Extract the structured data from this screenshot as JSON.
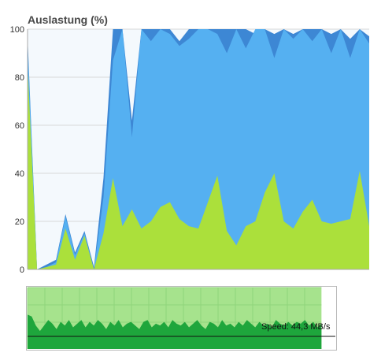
{
  "chart_data": {
    "type": "area",
    "title": "Auslastung (%)",
    "ylim": [
      0,
      100
    ],
    "yticks": [
      0,
      20,
      40,
      60,
      80,
      100
    ],
    "grid": true,
    "colors": {
      "background": "#f4f9fd",
      "series1": "#3d87d4",
      "series2": "#55b0f1",
      "series3": "#abe03b"
    },
    "samples": 37,
    "series": [
      {
        "values": [
          97,
          0,
          2,
          4,
          23,
          7,
          16,
          1,
          38,
          100,
          100,
          62,
          100,
          100,
          100,
          100,
          95,
          100,
          100,
          100,
          100,
          100,
          100,
          100,
          98,
          100,
          98,
          100,
          98,
          100,
          100,
          100,
          98,
          100,
          96,
          100,
          97
        ]
      },
      {
        "values": [
          94,
          0,
          1,
          3,
          22,
          6,
          15,
          0,
          30,
          87,
          100,
          55,
          100,
          95,
          100,
          98,
          93,
          96,
          100,
          100,
          98,
          90,
          100,
          92,
          100,
          100,
          88,
          100,
          96,
          100,
          95,
          100,
          90,
          100,
          88,
          100,
          94
        ]
      },
      {
        "values": [
          85,
          0,
          1,
          2,
          17,
          4,
          14,
          0,
          15,
          38,
          18,
          25,
          17,
          20,
          26,
          28,
          21,
          18,
          17,
          28,
          39,
          16,
          10,
          18,
          20,
          32,
          40,
          20,
          17,
          24,
          29,
          20,
          19,
          20,
          21,
          41,
          18
        ]
      }
    ]
  },
  "speed_panel": {
    "label": "Speed: 44,3 MB/s",
    "colors": {
      "background": "#a6e38d",
      "wave": "#1ea63c",
      "grid": "#8fd47a",
      "baseline": "#111111"
    },
    "fill_fraction": 0.95,
    "wave_values": [
      12,
      11,
      6,
      3,
      6,
      9,
      7,
      4,
      8,
      6,
      9,
      5,
      7,
      9,
      5,
      8,
      6,
      9,
      7,
      4,
      8,
      6,
      9,
      5,
      7,
      8,
      6,
      4,
      8,
      9,
      5,
      7,
      6,
      8,
      5,
      9,
      7,
      6,
      8,
      5,
      7,
      9,
      6,
      4,
      8,
      7,
      5,
      9,
      6,
      7,
      5,
      8,
      6,
      9,
      7,
      5,
      8,
      6,
      7,
      5,
      9,
      7,
      6,
      8,
      6,
      8,
      7,
      9,
      6,
      8,
      5,
      7
    ]
  }
}
